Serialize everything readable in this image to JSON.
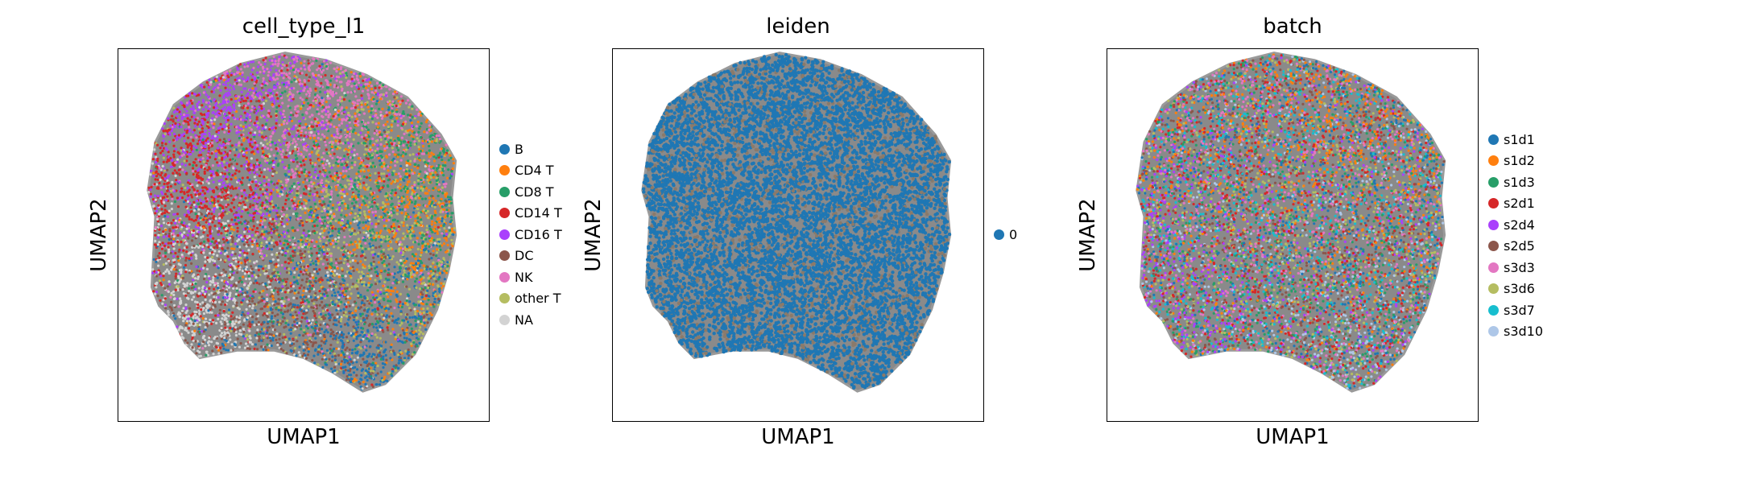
{
  "chart_data": [
    {
      "type": "scatter",
      "title": "cell_type_l1",
      "xlabel": "UMAP1",
      "ylabel": "UMAP2",
      "grid": false,
      "legend_placement": "right",
      "categories": [
        "B",
        "CD4 T",
        "CD8 T",
        "CD14 T",
        "CD16 T",
        "DC",
        "NK",
        "other T",
        "NA"
      ],
      "colors": [
        "#1f77b4",
        "#ff7f0e",
        "#279e68",
        "#d62728",
        "#aa40fc",
        "#8c564b",
        "#e377c2",
        "#b5bd61",
        "#d3d3d3"
      ],
      "regions": [
        {
          "category": "B",
          "center": [
            0.65,
            0.22
          ]
        },
        {
          "category": "CD4 T",
          "center": [
            0.78,
            0.58
          ]
        },
        {
          "category": "CD8 T",
          "center": [
            0.72,
            0.6
          ]
        },
        {
          "category": "CD14 T",
          "center": [
            0.24,
            0.65
          ]
        },
        {
          "category": "CD16 T",
          "center": [
            0.28,
            0.8
          ]
        },
        {
          "category": "DC",
          "center": [
            0.48,
            0.26
          ]
        },
        {
          "category": "NK",
          "center": [
            0.55,
            0.82
          ]
        },
        {
          "category": "other T",
          "center": [
            0.7,
            0.5
          ]
        },
        {
          "category": "NA",
          "center": [
            0.25,
            0.3
          ]
        }
      ]
    },
    {
      "type": "scatter",
      "title": "leiden",
      "xlabel": "UMAP1",
      "ylabel": "UMAP2",
      "grid": false,
      "legend_placement": "right",
      "categories": [
        "0"
      ],
      "colors": [
        "#1f77b4"
      ],
      "regions": [
        {
          "category": "0",
          "center": [
            0.5,
            0.5
          ]
        }
      ]
    },
    {
      "type": "scatter",
      "title": "batch",
      "xlabel": "UMAP1",
      "ylabel": "UMAP2",
      "grid": false,
      "legend_placement": "right",
      "categories": [
        "s1d1",
        "s1d2",
        "s1d3",
        "s2d1",
        "s2d4",
        "s2d5",
        "s3d3",
        "s3d6",
        "s3d7",
        "s3d10"
      ],
      "colors": [
        "#1f77b4",
        "#ff7f0e",
        "#279e68",
        "#d62728",
        "#aa40fc",
        "#8c564b",
        "#e377c2",
        "#b5bd61",
        "#17becf",
        "#aec7e8"
      ],
      "regions": [
        {
          "category": "s1d1",
          "center": [
            0.6,
            0.5
          ]
        },
        {
          "category": "s1d2",
          "center": [
            0.62,
            0.75
          ]
        },
        {
          "category": "s1d3",
          "center": [
            0.55,
            0.45
          ]
        },
        {
          "category": "s2d1",
          "center": [
            0.5,
            0.5
          ]
        },
        {
          "category": "s2d4",
          "center": [
            0.2,
            0.35
          ]
        },
        {
          "category": "s2d5",
          "center": [
            0.5,
            0.5
          ]
        },
        {
          "category": "s3d3",
          "center": [
            0.5,
            0.6
          ]
        },
        {
          "category": "s3d6",
          "center": [
            0.5,
            0.5
          ]
        },
        {
          "category": "s3d7",
          "center": [
            0.5,
            0.5
          ]
        },
        {
          "category": "s3d10",
          "center": [
            0.62,
            0.22
          ]
        }
      ]
    }
  ]
}
